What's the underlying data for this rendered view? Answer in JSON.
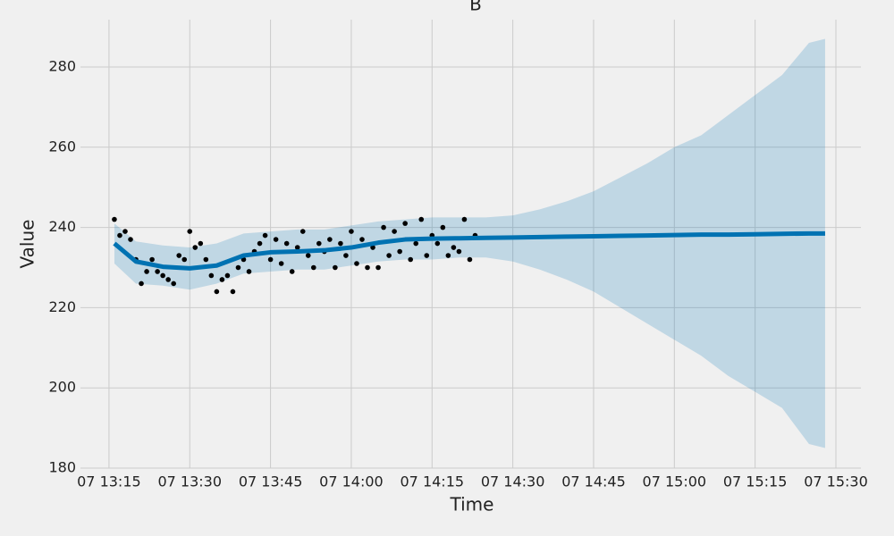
{
  "chart_data": {
    "type": "line",
    "title": "B",
    "x_label": "Time",
    "y_label": "Value",
    "grid": true,
    "ylim": [
      180,
      291.8
    ],
    "yticks": [
      180,
      200,
      220,
      240,
      260,
      280
    ],
    "xlim": [
      "13:09:42",
      "15:34:39"
    ],
    "xticks": [
      {
        "value": "13:15",
        "label": "07 13:15"
      },
      {
        "value": "13:30",
        "label": "07 13:30"
      },
      {
        "value": "13:45",
        "label": "07 13:45"
      },
      {
        "value": "14:00",
        "label": "07 14:00"
      },
      {
        "value": "14:15",
        "label": "07 14:15"
      },
      {
        "value": "14:30",
        "label": "07 14:30"
      },
      {
        "value": "14:45",
        "label": "07 14:45"
      },
      {
        "value": "15:00",
        "label": "07 15:00"
      },
      {
        "value": "15:15",
        "label": "07 15:15"
      },
      {
        "value": "15:30",
        "label": "07 15:30"
      }
    ],
    "observations": {
      "color": "#000000",
      "x": [
        "13:16",
        "13:17",
        "13:18",
        "13:19",
        "13:20",
        "13:21",
        "13:22",
        "13:23",
        "13:24",
        "13:25",
        "13:26",
        "13:27",
        "13:28",
        "13:29",
        "13:30",
        "13:31",
        "13:32",
        "13:33",
        "13:34",
        "13:35",
        "13:36",
        "13:37",
        "13:38",
        "13:39",
        "13:40",
        "13:41",
        "13:42",
        "13:43",
        "13:44",
        "13:45",
        "13:46",
        "13:47",
        "13:48",
        "13:49",
        "13:50",
        "13:51",
        "13:52",
        "13:53",
        "13:54",
        "13:55",
        "13:56",
        "13:57",
        "13:58",
        "13:59",
        "14:00",
        "14:01",
        "14:02",
        "14:03",
        "14:04",
        "14:05",
        "14:06",
        "14:07",
        "14:08",
        "14:09",
        "14:10",
        "14:11",
        "14:12",
        "14:13",
        "14:14",
        "14:15",
        "14:16",
        "14:17",
        "14:18",
        "14:19",
        "14:20",
        "14:21",
        "14:22",
        "14:23"
      ],
      "values": [
        242,
        238,
        239,
        237,
        232,
        226,
        229,
        232,
        229,
        228,
        227,
        226,
        233,
        232,
        239,
        235,
        236,
        232,
        228,
        224,
        227,
        228,
        224,
        230,
        232,
        229,
        234,
        236,
        238,
        232,
        237,
        231,
        236,
        229,
        235,
        239,
        233,
        230,
        236,
        234,
        237,
        230,
        236,
        233,
        239,
        231,
        237,
        230,
        235,
        230,
        240,
        233,
        239,
        234,
        241,
        232,
        236,
        242,
        233,
        238,
        236,
        240,
        233,
        235,
        234,
        242,
        232,
        238
      ]
    },
    "forecast": {
      "color": "#0072b2",
      "band_color": "#0072b2",
      "x": [
        "13:16",
        "13:20",
        "13:25",
        "13:30",
        "13:35",
        "13:40",
        "13:45",
        "13:50",
        "13:55",
        "14:00",
        "14:05",
        "14:10",
        "14:15",
        "14:20",
        "14:25",
        "14:30",
        "14:35",
        "14:40",
        "14:45",
        "14:50",
        "14:55",
        "15:00",
        "15:05",
        "15:10",
        "15:15",
        "15:20",
        "15:25",
        "15:28"
      ],
      "values": [
        236,
        231.5,
        230.2,
        229.8,
        230.5,
        233,
        233.8,
        234,
        234.3,
        235,
        236.2,
        237,
        237.2,
        237.3,
        237.4,
        237.5,
        237.6,
        237.7,
        237.8,
        237.9,
        238,
        238.1,
        238.2,
        238.2,
        238.3,
        238.4,
        238.5,
        238.5
      ],
      "upper": [
        241,
        236.5,
        235.5,
        235,
        236,
        238.5,
        239,
        239.5,
        239.5,
        240.5,
        241.5,
        242,
        242.5,
        242.5,
        242.5,
        243,
        244.5,
        246.5,
        249,
        252.5,
        256,
        260,
        263,
        268,
        273,
        278,
        286,
        287
      ],
      "lower": [
        231,
        226,
        225.5,
        224.5,
        226,
        228.5,
        229,
        229.5,
        229.5,
        230.5,
        231.5,
        232,
        232,
        232.5,
        232.5,
        231.5,
        229.5,
        227,
        224,
        220,
        216,
        212,
        208,
        203,
        199,
        195,
        186,
        185
      ]
    }
  }
}
